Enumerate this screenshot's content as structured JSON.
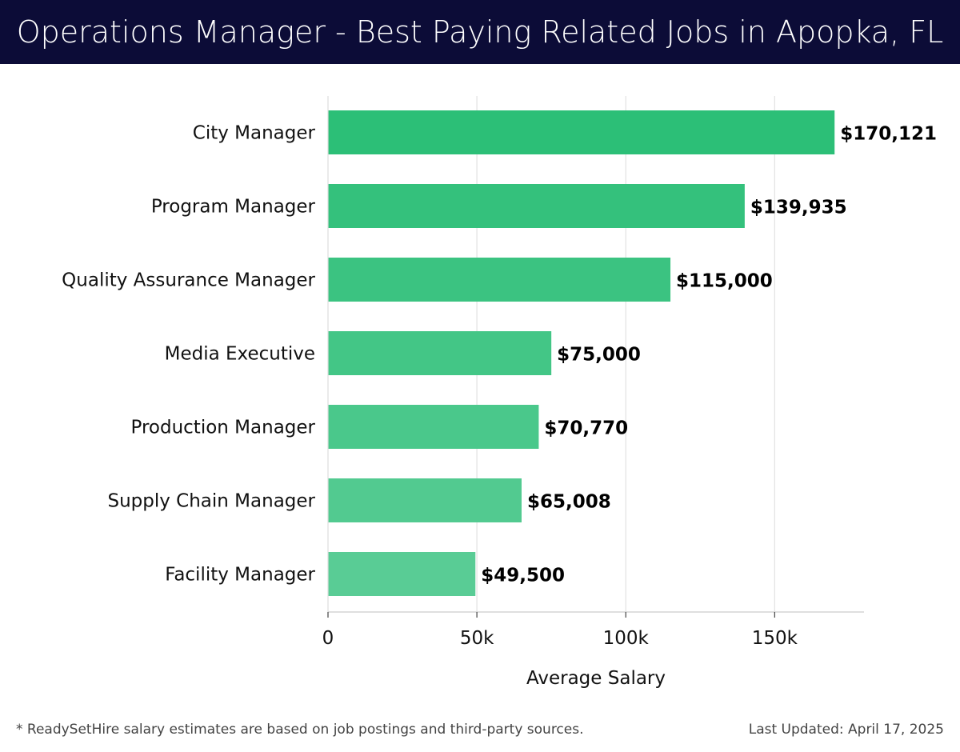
{
  "header": {
    "title": "Operations Manager - Best Paying Related Jobs in Apopka, FL"
  },
  "colors": {
    "header_bg": "#0c0c37",
    "bar_top": "#2cbf77",
    "bar_bottom": "#59cc95"
  },
  "chart_data": {
    "type": "bar",
    "orientation": "horizontal",
    "categories": [
      "City Manager",
      "Program Manager",
      "Quality Assurance Manager",
      "Media Executive",
      "Production Manager",
      "Supply Chain Manager",
      "Facility Manager"
    ],
    "values": [
      170121,
      139935,
      115000,
      75000,
      70770,
      65008,
      49500
    ],
    "value_labels": [
      "$170,121",
      "$139,935",
      "$115,000",
      "$75,000",
      "$70,770",
      "$65,008",
      "$49,500"
    ],
    "xlabel": "Average Salary",
    "ylabel": "",
    "xlim": [
      0,
      180000
    ],
    "xticks": [
      0,
      50000,
      100000,
      150000
    ],
    "xtick_labels": [
      "0",
      "50k",
      "100k",
      "150k"
    ],
    "grid": true
  },
  "footer": {
    "note": "* ReadySetHire salary estimates are based on job postings and third-party sources.",
    "updated": "Last Updated: April 17, 2025"
  }
}
